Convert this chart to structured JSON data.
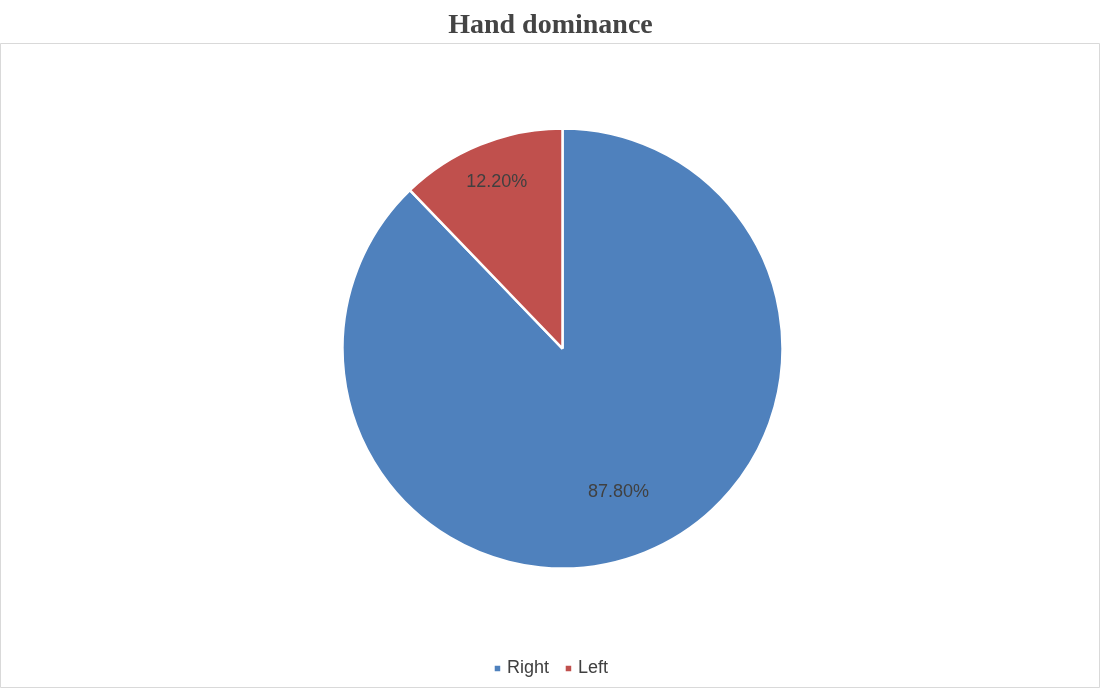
{
  "chart_data": {
    "type": "pie",
    "title": "Hand dominance",
    "categories": [
      "Right",
      "Left"
    ],
    "values": [
      87.8,
      12.2
    ],
    "colors": [
      "#4f81bd",
      "#c0504d"
    ],
    "value_labels": [
      "87.80%",
      "12.20%"
    ],
    "legend": "bottom"
  }
}
